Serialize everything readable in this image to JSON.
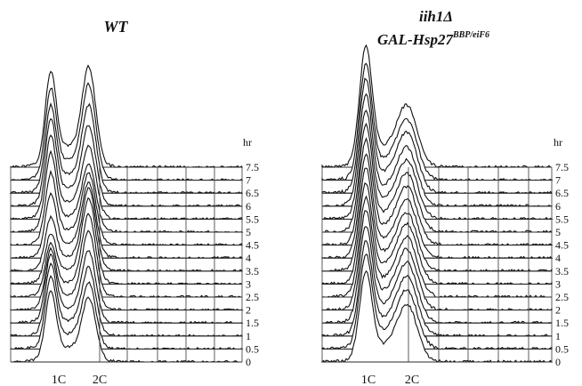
{
  "chart_data": [
    {
      "type": "area",
      "panel": "left",
      "title": "WT",
      "title_line2": "",
      "title_line2_sup": "",
      "y_unit": "hr",
      "x_ticks": [
        "1C",
        "2C"
      ],
      "time_points": [
        "0",
        "0.5",
        "1",
        "1.5",
        "2",
        "2.5",
        "3",
        "3.5",
        "4",
        "4.5",
        "5",
        "5.5",
        "6",
        "6.5",
        "7",
        "7.5"
      ],
      "series": [
        {
          "time": 0,
          "peak_1C": 0.9,
          "peak_2C": 0.8
        },
        {
          "time": 0.5,
          "peak_1C": 0.92,
          "peak_2C": 0.82
        },
        {
          "time": 1,
          "peak_1C": 0.9,
          "peak_2C": 0.85
        },
        {
          "time": 1.5,
          "peak_1C": 0.85,
          "peak_2C": 0.9
        },
        {
          "time": 2,
          "peak_1C": 0.75,
          "peak_2C": 1.0
        },
        {
          "time": 2.5,
          "peak_1C": 0.65,
          "peak_2C": 1.05
        },
        {
          "time": 3,
          "peak_1C": 0.6,
          "peak_2C": 1.1
        },
        {
          "time": 3.5,
          "peak_1C": 0.65,
          "peak_2C": 1.05
        },
        {
          "time": 4,
          "peak_1C": 0.8,
          "peak_2C": 0.95
        },
        {
          "time": 4.5,
          "peak_1C": 0.9,
          "peak_2C": 0.9
        },
        {
          "time": 5,
          "peak_1C": 1.0,
          "peak_2C": 0.85
        },
        {
          "time": 5.5,
          "peak_1C": 1.05,
          "peak_2C": 0.9
        },
        {
          "time": 6,
          "peak_1C": 1.1,
          "peak_2C": 1.0
        },
        {
          "time": 6.5,
          "peak_1C": 1.1,
          "peak_2C": 1.1
        },
        {
          "time": 7,
          "peak_1C": 1.15,
          "peak_2C": 1.2
        },
        {
          "time": 7.5,
          "peak_1C": 1.2,
          "peak_2C": 1.25
        }
      ]
    },
    {
      "type": "area",
      "panel": "right",
      "title": "iih1Δ",
      "title_line2": "GAL-Hsp27",
      "title_line2_sup": "BBP/eiF6",
      "y_unit": "hr",
      "x_ticks": [
        "1C",
        "2C"
      ],
      "time_points": [
        "0",
        "0.5",
        "1",
        "1.5",
        "2",
        "2.5",
        "3",
        "3.5",
        "4",
        "4.5",
        "5",
        "5.5",
        "6",
        "6.5",
        "7",
        "7.5"
      ],
      "series": [
        {
          "time": 0,
          "peak_1C": 1.0,
          "peak_2C": 0.6
        },
        {
          "time": 0.5,
          "peak_1C": 1.05,
          "peak_2C": 0.62
        },
        {
          "time": 1,
          "peak_1C": 1.05,
          "peak_2C": 0.63
        },
        {
          "time": 1.5,
          "peak_1C": 1.08,
          "peak_2C": 0.63
        },
        {
          "time": 2,
          "peak_1C": 1.1,
          "peak_2C": 0.63
        },
        {
          "time": 2.5,
          "peak_1C": 1.1,
          "peak_2C": 0.62
        },
        {
          "time": 3,
          "peak_1C": 1.12,
          "peak_2C": 0.62
        },
        {
          "time": 3.5,
          "peak_1C": 1.15,
          "peak_2C": 0.6
        },
        {
          "time": 4,
          "peak_1C": 1.15,
          "peak_2C": 0.6
        },
        {
          "time": 4.5,
          "peak_1C": 1.18,
          "peak_2C": 0.6
        },
        {
          "time": 5,
          "peak_1C": 1.2,
          "peak_2C": 0.6
        },
        {
          "time": 5.5,
          "peak_1C": 1.22,
          "peak_2C": 0.6
        },
        {
          "time": 6,
          "peak_1C": 1.25,
          "peak_2C": 0.6
        },
        {
          "time": 6.5,
          "peak_1C": 1.28,
          "peak_2C": 0.62
        },
        {
          "time": 7,
          "peak_1C": 1.3,
          "peak_2C": 0.62
        },
        {
          "time": 7.5,
          "peak_1C": 1.35,
          "peak_2C": 0.63
        }
      ]
    }
  ]
}
